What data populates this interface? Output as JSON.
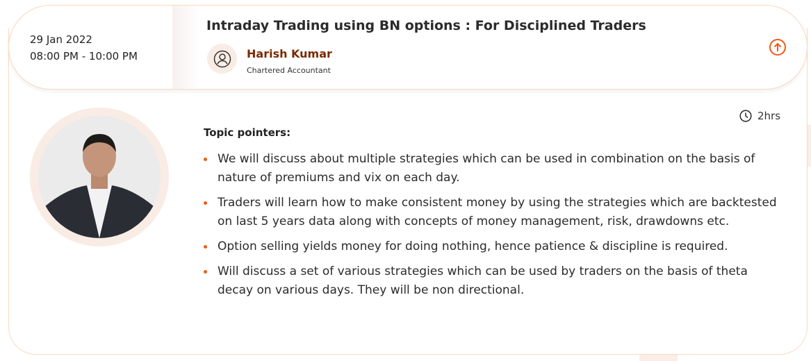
{
  "session": {
    "date": "29 Jan 2022",
    "time": "08:00 PM - 10:00 PM",
    "title": "Intraday Trading using BN options : For Disciplined Traders",
    "speaker_name": "Harish Kumar",
    "speaker_role": "Chartered Accountant",
    "duration": "2hrs",
    "collapse_icon": "arrow-up-circle-icon",
    "accent_color": "#f05a12"
  },
  "details": {
    "topic_heading": "Topic pointers:",
    "pointers": [
      "We will discuss about multiple strategies which can be used in combination on the basis of nature of premiums and vix on each day.",
      "Traders will learn how to make consistent money by using the strategies which are backtested on last 5 years data along with concepts of money management, risk, drawdowns etc.",
      "Option selling yields money for doing nothing, hence patience & discipline is required.",
      "Will discuss a set of various strategies which can be used by traders on the basis of theta decay on various days. They will be non directional."
    ]
  }
}
